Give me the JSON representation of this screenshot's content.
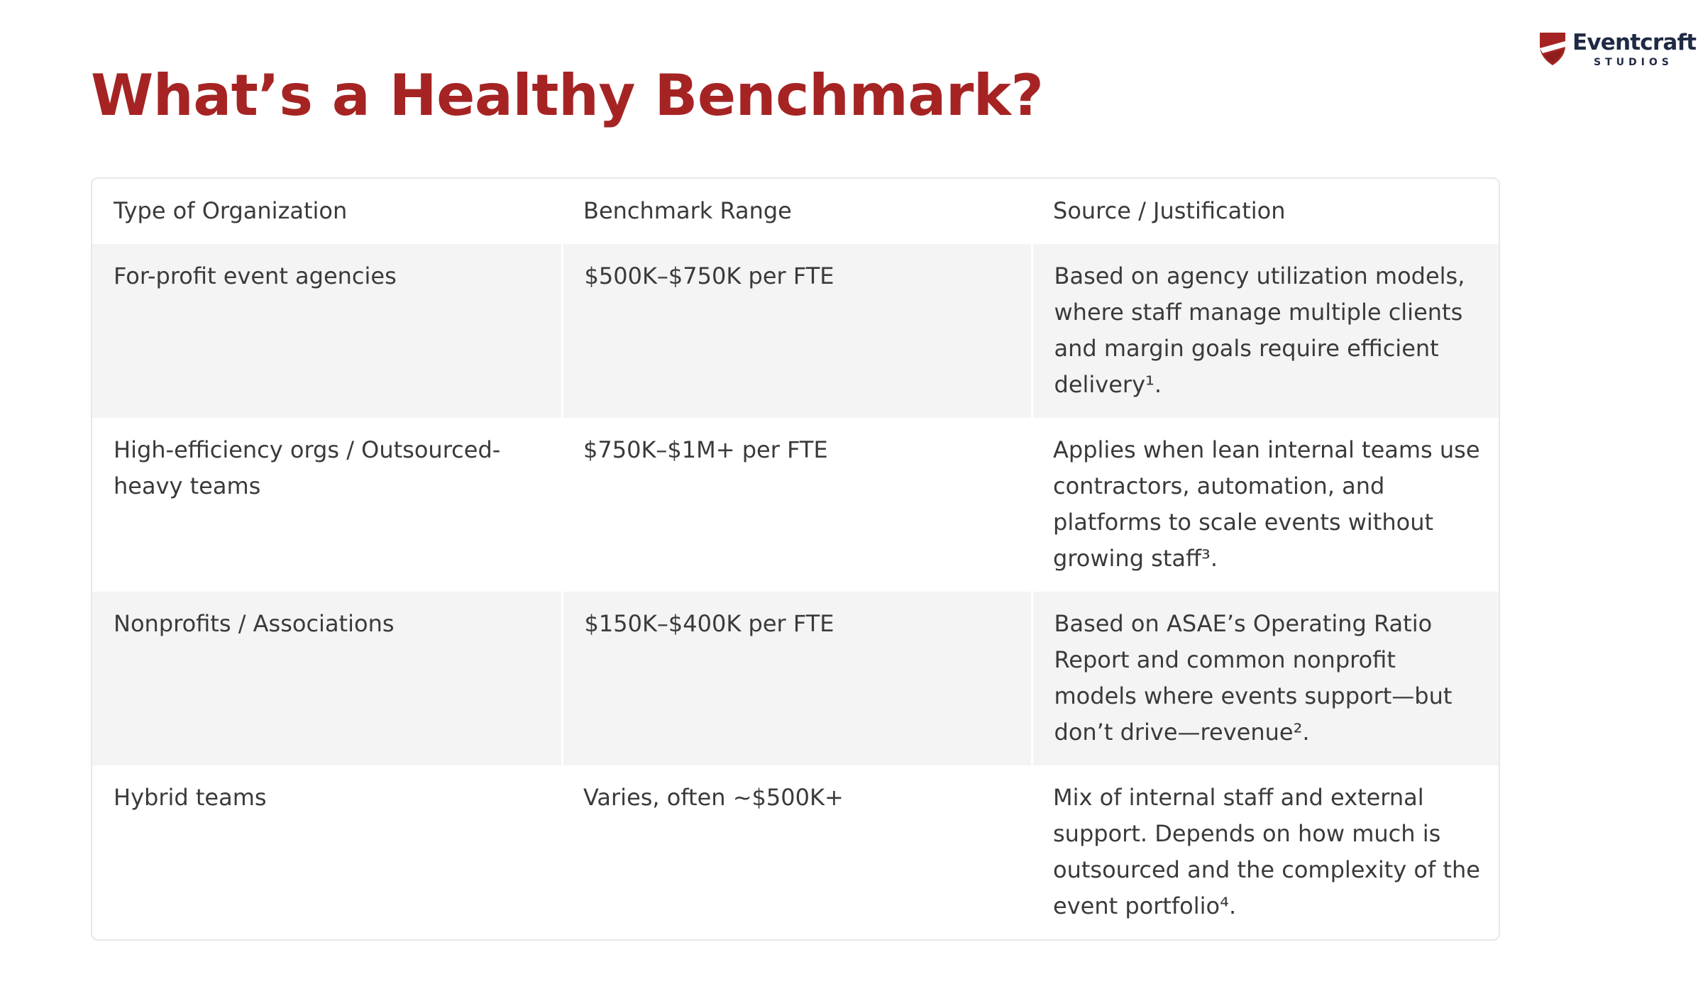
{
  "page": {
    "title": "What’s a Healthy Benchmark?"
  },
  "logo": {
    "name": "Eventcraft",
    "subtitle": "STUDIOS",
    "icon": "shield-logo-icon",
    "colors": {
      "mark": "#a52423",
      "text": "#1f2a44"
    }
  },
  "table": {
    "headers": [
      "Type of Organization",
      "Benchmark Range",
      "Source / Justification"
    ],
    "rows": [
      {
        "type": "For-profit event agencies",
        "range": "$500K–$750K per FTE",
        "source": "Based on agency utilization models, where staff manage multiple clients and margin goals require efficient delivery¹."
      },
      {
        "type": "High-efficiency orgs / Outsourced-heavy teams",
        "range": "$750K–$1M+ per FTE",
        "source": "Applies when lean internal teams use contractors, automation, and platforms to scale events without growing staff³."
      },
      {
        "type": "Nonprofits / Associations",
        "range": "$150K–$400K per FTE",
        "source": "Based on ASAE’s Operating Ratio Report and common nonprofit models where events support—but don’t drive—revenue²."
      },
      {
        "type": "Hybrid teams",
        "range": "Varies, often ~$500K+",
        "source": "Mix of internal staff and external support. Depends on how much is outsourced and the complexity of the event portfolio⁴."
      }
    ]
  },
  "colors": {
    "title": "#a52423",
    "text": "#3a3a3a",
    "row_shade": "#f4f4f4",
    "border": "#e8e8e8"
  }
}
